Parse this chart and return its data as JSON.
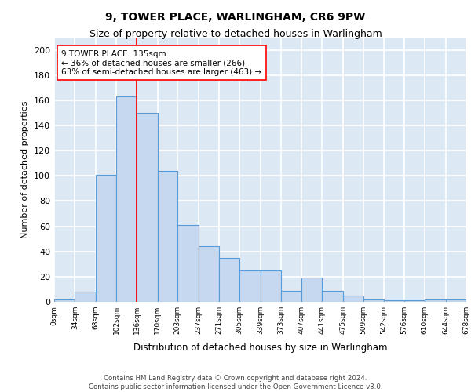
{
  "title1": "9, TOWER PLACE, WARLINGHAM, CR6 9PW",
  "title2": "Size of property relative to detached houses in Warlingham",
  "xlabel": "Distribution of detached houses by size in Warlingham",
  "ylabel": "Number of detached properties",
  "bar_edges": [
    0,
    34,
    68,
    102,
    136,
    170,
    203,
    237,
    271,
    305,
    339,
    373,
    407,
    441,
    475,
    509,
    542,
    576,
    610,
    644,
    678
  ],
  "bar_heights": [
    2,
    8,
    101,
    163,
    150,
    104,
    61,
    44,
    35,
    25,
    25,
    9,
    19,
    9,
    5,
    2,
    1,
    1,
    2,
    2
  ],
  "bar_color": "#c5d8f0",
  "bar_edge_color": "#5b9bd5",
  "property_line_x": 135,
  "property_line_color": "red",
  "annotation_text": "9 TOWER PLACE: 135sqm\n← 36% of detached houses are smaller (266)\n63% of semi-detached houses are larger (463) →",
  "annotation_box_color": "white",
  "annotation_box_edge": "red",
  "ylim": [
    0,
    210
  ],
  "yticks": [
    0,
    20,
    40,
    60,
    80,
    100,
    120,
    140,
    160,
    180,
    200
  ],
  "xtick_labels": [
    "0sqm",
    "34sqm",
    "68sqm",
    "102sqm",
    "136sqm",
    "170sqm",
    "203sqm",
    "237sqm",
    "271sqm",
    "305sqm",
    "339sqm",
    "373sqm",
    "407sqm",
    "441sqm",
    "475sqm",
    "509sqm",
    "542sqm",
    "576sqm",
    "610sqm",
    "644sqm",
    "678sqm"
  ],
  "footer_text": "Contains HM Land Registry data © Crown copyright and database right 2024.\nContains public sector information licensed under the Open Government Licence v3.0.",
  "background_color": "#dde8f5",
  "grid_color": "white"
}
